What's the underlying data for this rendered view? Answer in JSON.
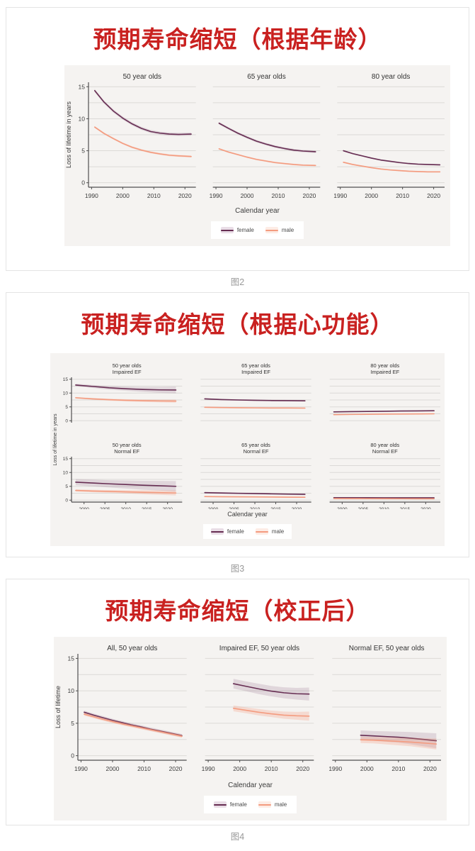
{
  "colors": {
    "title_red": "#c92120",
    "female_line": "#662d52",
    "male_line": "#f49b7f",
    "female_band": "rgba(102,45,82,0.14)",
    "male_band": "rgba(244,155,127,0.28)",
    "chart_bg": "#f5f3f1",
    "grid": "#dcdad7",
    "axis": "#4f4f4f",
    "tick_text": "#3c3c3c",
    "caption_gray": "#9a9a9a"
  },
  "figures": [
    {
      "title": "预期寿命缩短（根据年龄）",
      "caption": "图2"
    },
    {
      "title": "预期寿命缩短（根据心功能）",
      "caption": "图3"
    },
    {
      "title": "预期寿命缩短（校正后）",
      "caption": "图4"
    }
  ],
  "chart_data": [
    {
      "type": "line",
      "title": "预期寿命缩短（根据年龄）",
      "xlabel": "Calendar year",
      "ylabel": "Loss of lifetime in years",
      "legend": [
        "female",
        "male"
      ],
      "legend_position": "bottom",
      "grid": true,
      "x_ticks": [
        1990,
        2000,
        2010,
        2020
      ],
      "y_ticks": [
        0,
        5,
        10,
        15
      ],
      "xlim": [
        1989,
        2023.5
      ],
      "ylim": [
        -0.7,
        15.7
      ],
      "panels": [
        {
          "title": [
            "50 year olds"
          ],
          "series": [
            {
              "name": "female",
              "x": [
                1991,
                1994,
                1997,
                2000,
                2003,
                2006,
                2009,
                2012,
                2015,
                2018,
                2022
              ],
              "y": [
                14.4,
                12.6,
                11.2,
                10.1,
                9.2,
                8.5,
                8.0,
                7.75,
                7.6,
                7.55,
                7.6
              ],
              "band": 0.25
            },
            {
              "name": "male",
              "x": [
                1991,
                1994,
                1997,
                2000,
                2003,
                2006,
                2009,
                2012,
                2015,
                2018,
                2022
              ],
              "y": [
                8.7,
                7.7,
                6.9,
                6.15,
                5.55,
                5.1,
                4.75,
                4.5,
                4.3,
                4.2,
                4.1
              ],
              "band": 0.15
            }
          ]
        },
        {
          "title": [
            "65 year olds"
          ],
          "series": [
            {
              "name": "female",
              "x": [
                1991,
                1994,
                1997,
                2000,
                2003,
                2006,
                2009,
                2012,
                2015,
                2018,
                2022
              ],
              "y": [
                9.3,
                8.5,
                7.75,
                7.1,
                6.5,
                6.05,
                5.65,
                5.35,
                5.1,
                4.95,
                4.85
              ],
              "band": 0.2
            },
            {
              "name": "male",
              "x": [
                1991,
                1994,
                1997,
                2000,
                2003,
                2006,
                2009,
                2012,
                2015,
                2018,
                2022
              ],
              "y": [
                5.3,
                4.8,
                4.4,
                4.0,
                3.65,
                3.4,
                3.15,
                3.0,
                2.85,
                2.75,
                2.7
              ],
              "band": 0.12
            }
          ]
        },
        {
          "title": [
            "80 year olds"
          ],
          "series": [
            {
              "name": "female",
              "x": [
                1991,
                1994,
                1997,
                2000,
                2003,
                2006,
                2009,
                2012,
                2015,
                2018,
                2022
              ],
              "y": [
                5.0,
                4.55,
                4.2,
                3.85,
                3.55,
                3.35,
                3.15,
                3.0,
                2.9,
                2.85,
                2.8
              ],
              "band": 0.12
            },
            {
              "name": "male",
              "x": [
                1991,
                1994,
                1997,
                2000,
                2003,
                2006,
                2009,
                2012,
                2015,
                2018,
                2022
              ],
              "y": [
                3.2,
                2.85,
                2.6,
                2.35,
                2.15,
                2.0,
                1.9,
                1.8,
                1.75,
                1.7,
                1.7
              ],
              "band": 0.1
            }
          ]
        }
      ]
    },
    {
      "type": "line",
      "title": "预期寿命缩短（根据心功能）",
      "xlabel": "Calendar year",
      "ylabel": "Loss of lifetime in years",
      "legend": [
        "female",
        "male"
      ],
      "legend_position": "bottom",
      "grid": true,
      "x_ticks": [
        2000,
        2005,
        2010,
        2015,
        2020
      ],
      "y_ticks": [
        0,
        5,
        10,
        15
      ],
      "xlim": [
        1997,
        2023.5
      ],
      "ylim": [
        -0.7,
        15.7
      ],
      "panels": [
        {
          "title": [
            "50 year olds",
            "Impaired EF"
          ],
          "series": [
            {
              "name": "female",
              "x": [
                1998,
                2002,
                2006,
                2010,
                2014,
                2018,
                2022
              ],
              "y": [
                12.9,
                12.4,
                11.9,
                11.55,
                11.3,
                11.15,
                11.1
              ],
              "band": [
                0.45,
                0.55,
                0.65,
                0.75,
                0.9,
                1.05,
                1.2
              ]
            },
            {
              "name": "male",
              "x": [
                1998,
                2002,
                2006,
                2010,
                2014,
                2018,
                2022
              ],
              "y": [
                8.3,
                7.9,
                7.6,
                7.4,
                7.25,
                7.15,
                7.1
              ],
              "band": [
                0.25,
                0.3,
                0.35,
                0.4,
                0.45,
                0.5,
                0.55
              ]
            }
          ]
        },
        {
          "title": [
            "65 year olds",
            "Impaired EF"
          ],
          "series": [
            {
              "name": "female",
              "x": [
                1998,
                2002,
                2006,
                2010,
                2014,
                2018,
                2022
              ],
              "y": [
                7.9,
                7.65,
                7.5,
                7.4,
                7.3,
                7.25,
                7.2
              ],
              "band": 0.25
            },
            {
              "name": "male",
              "x": [
                1998,
                2002,
                2006,
                2010,
                2014,
                2018,
                2022
              ],
              "y": [
                4.85,
                4.75,
                4.7,
                4.65,
                4.6,
                4.6,
                4.55
              ],
              "band": 0.18
            }
          ]
        },
        {
          "title": [
            "80 year olds",
            "Impaired EF"
          ],
          "series": [
            {
              "name": "female",
              "x": [
                1998,
                2002,
                2006,
                2010,
                2014,
                2018,
                2022
              ],
              "y": [
                3.2,
                3.28,
                3.35,
                3.42,
                3.5,
                3.55,
                3.6
              ],
              "band": 0.18
            },
            {
              "name": "male",
              "x": [
                1998,
                2002,
                2006,
                2010,
                2014,
                2018,
                2022
              ],
              "y": [
                2.2,
                2.28,
                2.33,
                2.38,
                2.42,
                2.46,
                2.5
              ],
              "band": 0.15
            }
          ]
        },
        {
          "title": [
            "50 year olds",
            "Normal EF"
          ],
          "series": [
            {
              "name": "female",
              "x": [
                1998,
                2002,
                2006,
                2010,
                2014,
                2018,
                2022
              ],
              "y": [
                6.5,
                6.2,
                5.9,
                5.65,
                5.4,
                5.2,
                5.0
              ],
              "band": [
                1.1,
                1.2,
                1.3,
                1.45,
                1.6,
                1.75,
                1.9
              ]
            },
            {
              "name": "male",
              "x": [
                1998,
                2002,
                2006,
                2010,
                2014,
                2018,
                2022
              ],
              "y": [
                3.5,
                3.3,
                3.15,
                3.0,
                2.85,
                2.72,
                2.6
              ],
              "band": [
                0.4,
                0.45,
                0.5,
                0.6,
                0.7,
                0.8,
                0.9
              ]
            }
          ]
        },
        {
          "title": [
            "65 year olds",
            "Normal EF"
          ],
          "series": [
            {
              "name": "female",
              "x": [
                1998,
                2002,
                2006,
                2010,
                2014,
                2018,
                2022
              ],
              "y": [
                2.7,
                2.58,
                2.47,
                2.38,
                2.28,
                2.18,
                2.1
              ],
              "band": 0.3
            },
            {
              "name": "male",
              "x": [
                1998,
                2002,
                2006,
                2010,
                2014,
                2018,
                2022
              ],
              "y": [
                1.3,
                1.25,
                1.2,
                1.17,
                1.13,
                1.08,
                1.05
              ],
              "band": 0.2
            }
          ]
        },
        {
          "title": [
            "80 year olds",
            "Normal EF"
          ],
          "series": [
            {
              "name": "female",
              "x": [
                1998,
                2002,
                2006,
                2010,
                2014,
                2018,
                2022
              ],
              "y": [
                0.9,
                0.9,
                0.88,
                0.87,
                0.86,
                0.85,
                0.85
              ],
              "band": 0.22
            },
            {
              "name": "male",
              "x": [
                1998,
                2002,
                2006,
                2010,
                2014,
                2018,
                2022
              ],
              "y": [
                0.58,
                0.56,
                0.55,
                0.53,
                0.52,
                0.5,
                0.5
              ],
              "band": 0.18
            }
          ]
        }
      ]
    },
    {
      "type": "line",
      "title": "预期寿命缩短（校正后）",
      "xlabel": "Calendar year",
      "ylabel": "Loss of lifetime",
      "legend": [
        "female",
        "male"
      ],
      "legend_position": "bottom",
      "grid": true,
      "x_ticks": [
        1990,
        2000,
        2010,
        2020
      ],
      "y_ticks": [
        0,
        5,
        10,
        15
      ],
      "xlim": [
        1989,
        2023.5
      ],
      "ylim": [
        -0.7,
        15.7
      ],
      "panels": [
        {
          "title": [
            "All, 50 year olds"
          ],
          "series": [
            {
              "name": "female",
              "x": [
                1991,
                1994,
                1997,
                2000,
                2003,
                2006,
                2009,
                2012,
                2015,
                2018,
                2022
              ],
              "y": [
                6.7,
                6.25,
                5.85,
                5.45,
                5.1,
                4.75,
                4.45,
                4.1,
                3.8,
                3.5,
                3.1
              ],
              "band": 0.25
            },
            {
              "name": "male",
              "x": [
                1991,
                1994,
                1997,
                2000,
                2003,
                2006,
                2009,
                2012,
                2015,
                2018,
                2022
              ],
              "y": [
                6.4,
                6.0,
                5.6,
                5.25,
                4.9,
                4.6,
                4.3,
                4.0,
                3.7,
                3.4,
                3.0
              ],
              "band": 0.22
            }
          ]
        },
        {
          "title": [
            "Impaired EF, 50 year olds"
          ],
          "series": [
            {
              "name": "female",
              "x": [
                1998,
                2002,
                2006,
                2010,
                2014,
                2018,
                2022
              ],
              "y": [
                11.1,
                10.7,
                10.3,
                9.95,
                9.7,
                9.55,
                9.5
              ],
              "band": [
                0.75,
                0.75,
                0.8,
                0.8,
                0.85,
                0.9,
                1.0
              ]
            },
            {
              "name": "male",
              "x": [
                1998,
                2002,
                2006,
                2010,
                2014,
                2018,
                2022
              ],
              "y": [
                7.3,
                7.0,
                6.7,
                6.45,
                6.25,
                6.15,
                6.1
              ],
              "band": [
                0.45,
                0.45,
                0.5,
                0.5,
                0.55,
                0.6,
                0.7
              ]
            }
          ]
        },
        {
          "title": [
            "Normal EF, 50 year olds"
          ],
          "series": [
            {
              "name": "female",
              "x": [
                1998,
                2002,
                2006,
                2010,
                2014,
                2018,
                2022
              ],
              "y": [
                3.15,
                3.05,
                2.95,
                2.85,
                2.7,
                2.5,
                2.3
              ],
              "band": [
                0.75,
                0.75,
                0.8,
                0.85,
                0.95,
                1.05,
                1.15
              ]
            },
            {
              "name": "male",
              "x": [
                1998,
                2002,
                2006,
                2010,
                2014,
                2018,
                2022
              ],
              "y": [
                2.45,
                2.4,
                2.3,
                2.2,
                2.1,
                1.95,
                1.8
              ],
              "band": [
                0.5,
                0.5,
                0.55,
                0.6,
                0.65,
                0.75,
                0.85
              ]
            }
          ]
        }
      ]
    }
  ]
}
